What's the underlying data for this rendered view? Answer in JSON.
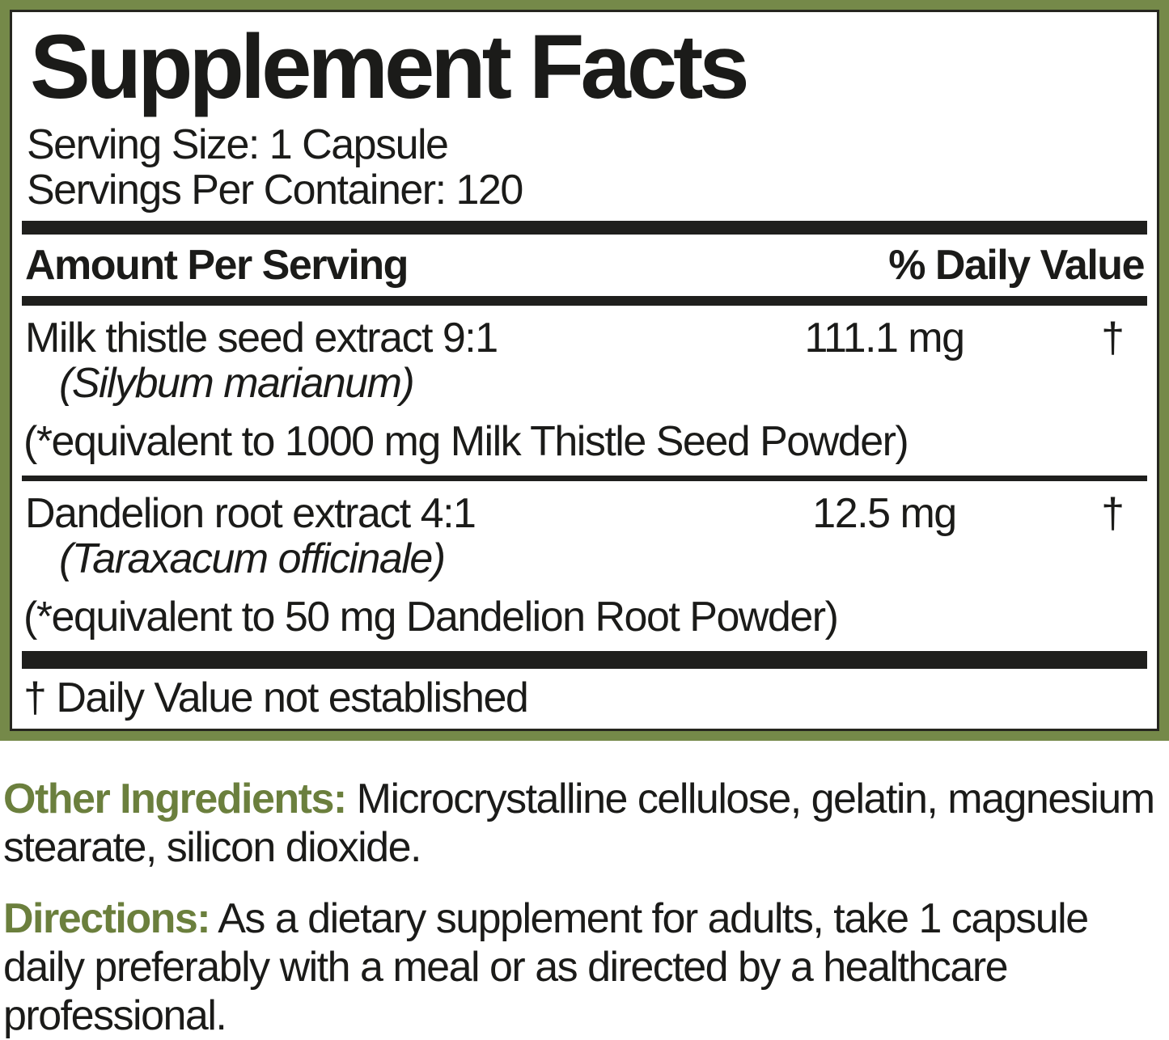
{
  "colors": {
    "frame_green": "#758949",
    "accent_green": "#6b7f3d",
    "bar_black": "#1f1f1d",
    "text_black": "#1b1b19"
  },
  "panel": {
    "title": "Supplement Facts",
    "serving_size": "Serving Size: 1 Capsule",
    "servings_per_container": "Servings Per Container: 120",
    "header": {
      "amount_label": "Amount Per Serving",
      "daily_value_label": "% Daily Value"
    },
    "rows": [
      {
        "name": "Milk thistle seed extract 9:1",
        "latin": "(Silybum marianum)",
        "equivalent": "(*equivalent to 1000 mg Milk Thistle Seed Powder)",
        "amount": "111.1 mg",
        "daily_value": "†"
      },
      {
        "name": "Dandelion root extract 4:1",
        "latin": "(Taraxacum officinale)",
        "equivalent": "(*equivalent to 50 mg Dandelion Root Powder)",
        "amount": "12.5 mg",
        "daily_value": "†"
      }
    ],
    "footnote": "† Daily Value not established"
  },
  "other_ingredients": {
    "label": "Other Ingredients:",
    "text": " Microcrystalline cellulose, gelatin, magnesium stearate, silicon dioxide."
  },
  "directions": {
    "label": "Directions:",
    "text": " As a dietary supplement for adults, take 1 capsule daily preferably with a meal or as directed by a healthcare professional."
  }
}
